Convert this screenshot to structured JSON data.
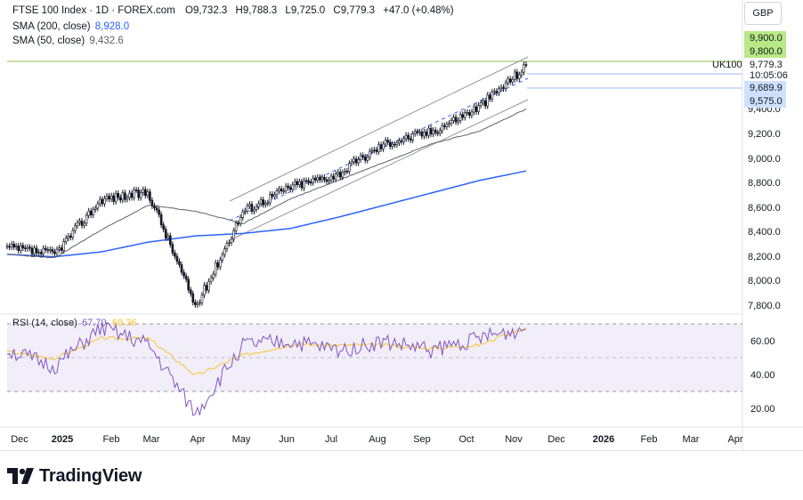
{
  "header": {
    "title": "FTSE 100 Index · 1D · FOREX.com",
    "ohlc": [
      {
        "k": "O",
        "v": "9,732.3"
      },
      {
        "k": "H",
        "v": "9,788.3"
      },
      {
        "k": "L",
        "v": "9,725.0"
      },
      {
        "k": "C",
        "v": "9,779.3"
      }
    ],
    "change": "+47.0 (+0.48%)",
    "sma200_label": "SMA (200, close)",
    "sma200_value": "8,928.0",
    "sma50_label": "SMA (50, close)",
    "sma50_value": "9,432.6"
  },
  "currency": "GBP",
  "rsi": {
    "label": "RSI (14, close)",
    "value": "67.70",
    "ma_value": "68.36"
  },
  "badges": {
    "level_a": "9,900.0",
    "level_b": "9,800.0",
    "symbol": "UK100",
    "price": "9,779.3",
    "countdown": "10:05:06",
    "level_c": "9,689.9",
    "level_d": "9,575.0"
  },
  "brand": "TradingView",
  "colors": {
    "up": "#131722",
    "sma200": "#2962ff",
    "sma50": "#5d606b",
    "rsi": "#7e57c2",
    "rsi_ma": "#f7c431",
    "badge_green": "#b8e986",
    "badge_blue": "#cfe0ff"
  },
  "chart_data": [
    {
      "type": "line",
      "title": "FTSE 100 Index · 1D · FOREX.com",
      "y_ticks": [
        "7,800.0",
        "8,000.0",
        "8,200.0",
        "8,400.0",
        "8,600.0",
        "8,800.0",
        "9,000.0",
        "9,200.0",
        "9,400.0"
      ],
      "ylim": [
        7700,
        10000
      ],
      "x_ticks": [
        "Dec",
        "2025",
        "Feb",
        "Mar",
        "Apr",
        "May",
        "Jun",
        "Jul",
        "Aug",
        "Sep",
        "Oct",
        "Nov",
        "Dec",
        "2026",
        "Feb",
        "Mar",
        "Apr"
      ],
      "series": [
        {
          "name": "FTSE 100",
          "x": [
            "Dec",
            "2025",
            "Feb",
            "Mar",
            "Apr",
            "May",
            "Jun",
            "Jul",
            "Aug",
            "Sep",
            "Oct",
            "Nov"
          ],
          "values": [
            8300,
            8250,
            8700,
            8750,
            7820,
            8600,
            8800,
            8900,
            9150,
            9250,
            9450,
            9779.3
          ]
        },
        {
          "name": "SMA (200, close)",
          "x": [
            "Dec",
            "2025",
            "Feb",
            "Mar",
            "Apr",
            "May",
            "Jun",
            "Jul",
            "Aug",
            "Sep",
            "Oct",
            "Nov"
          ],
          "values": [
            8250,
            8230,
            8270,
            8350,
            8400,
            8420,
            8460,
            8550,
            8650,
            8750,
            8850,
            8928.0
          ]
        },
        {
          "name": "SMA (50, close)",
          "x": [
            "Dec",
            "2025",
            "Feb",
            "Mar",
            "Apr",
            "May",
            "Jun",
            "Jul",
            "Aug",
            "Sep",
            "Oct",
            "Nov"
          ],
          "values": [
            8250,
            8220,
            8450,
            8650,
            8600,
            8500,
            8700,
            8850,
            9000,
            9150,
            9250,
            9432.6
          ]
        }
      ]
    },
    {
      "type": "line",
      "title": "RSI (14, close)",
      "y_ticks": [
        "20.00",
        "40.00",
        "60.00"
      ],
      "ylim": [
        15,
        72
      ],
      "x": [
        "Dec",
        "2025",
        "Feb",
        "Mar",
        "Apr",
        "May",
        "Jun",
        "Jul",
        "Aug",
        "Sep",
        "Oct",
        "Nov"
      ],
      "series": [
        {
          "name": "RSI (14, close)",
          "values": [
            55,
            45,
            68,
            58,
            17,
            58,
            60,
            55,
            60,
            55,
            62,
            67.7
          ]
        },
        {
          "name": "RSI MA",
          "values": [
            54,
            50,
            62,
            62,
            40,
            52,
            58,
            58,
            58,
            56,
            58,
            68.36
          ]
        }
      ]
    }
  ]
}
